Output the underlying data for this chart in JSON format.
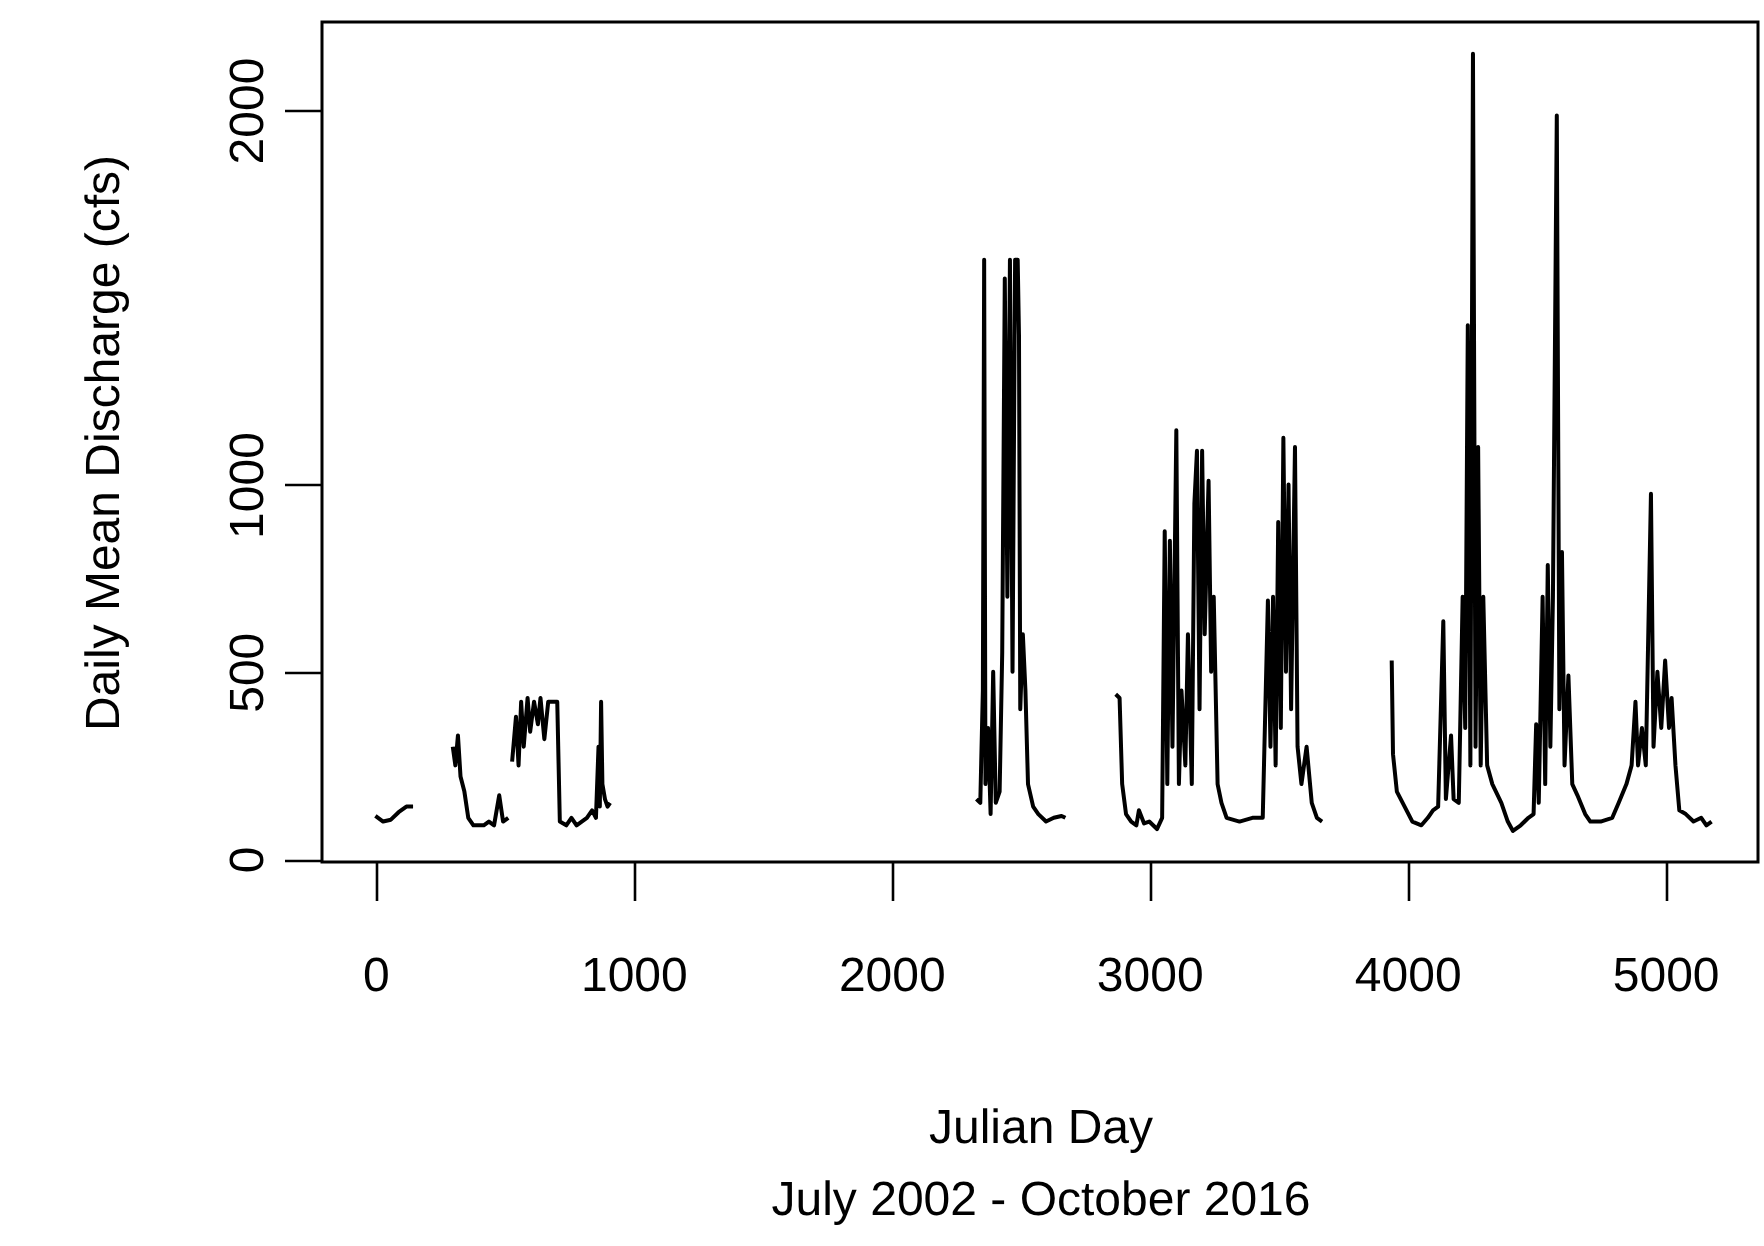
{
  "chart_data": {
    "type": "line",
    "xlabel": "Julian Day\nJuly 2002 - October 2016",
    "ylabel": "Daily Mean Discharge (cfs)",
    "xlim": [
      -207,
      5360
    ],
    "ylim": [
      -8,
      2235
    ],
    "xticks": [
      0,
      1000,
      2000,
      3000,
      4000,
      5000
    ],
    "yticks": [
      0,
      500,
      1000,
      2000
    ],
    "grid": false,
    "series": [
      {
        "color": "#000000",
        "x": [
          0,
          30,
          60,
          90,
          120,
          146,
          220,
          300,
          310,
          320,
          330,
          345,
          360,
          380,
          420,
          440,
          460,
          480,
          495,
          515,
          522,
          530,
          545,
          555,
          565,
          575,
          590,
          600,
          615,
          630,
          640,
          655,
          670,
          685,
          705,
          715,
          740,
          760,
          780,
          800,
          820,
          840,
          855,
          865,
          870,
          875,
          880,
          890,
          900,
          910,
          1500,
          2330,
          2345,
          2355,
          2360,
          2365,
          2375,
          2385,
          2395,
          2405,
          2420,
          2430,
          2440,
          2450,
          2460,
          2470,
          2480,
          2490,
          2495,
          2500,
          2510,
          2520,
          2530,
          2550,
          2570,
          2600,
          2630,
          2660,
          2675,
          2770,
          2870,
          2885,
          2895,
          2910,
          2930,
          2950,
          2960,
          2980,
          3000,
          3030,
          3050,
          3060,
          3070,
          3080,
          3090,
          3105,
          3115,
          3125,
          3140,
          3150,
          3165,
          3175,
          3185,
          3195,
          3205,
          3215,
          3230,
          3240,
          3250,
          3265,
          3280,
          3300,
          3350,
          3400,
          3440,
          3460,
          3470,
          3480,
          3490,
          3500,
          3510,
          3520,
          3530,
          3540,
          3550,
          3565,
          3575,
          3590,
          3610,
          3630,
          3650,
          3670,
          3800,
          3940,
          3945,
          3960,
          3990,
          4020,
          4055,
          4080,
          4100,
          4120,
          4140,
          4150,
          4170,
          4180,
          4200,
          4215,
          4225,
          4235,
          4245,
          4255,
          4265,
          4275,
          4285,
          4295,
          4310,
          4330,
          4365,
          4390,
          4410,
          4440,
          4470,
          4490,
          4500,
          4510,
          4525,
          4535,
          4545,
          4555,
          4565,
          4580,
          4590,
          4600,
          4610,
          4625,
          4640,
          4660,
          4690,
          4710,
          4750,
          4795,
          4820,
          4850,
          4870,
          4885,
          4895,
          4910,
          4925,
          4945,
          4955,
          4970,
          4985,
          5000,
          5015,
          5025,
          5040,
          5055,
          5080,
          5110,
          5140,
          5160,
          5180
        ],
        "values": [
          115,
          100,
          105,
          125,
          140,
          140,
          null,
          300,
          250,
          330,
          220,
          180,
          110,
          90,
          90,
          100,
          90,
          170,
          100,
          110,
          null,
          260,
          380,
          250,
          420,
          300,
          430,
          340,
          420,
          360,
          430,
          320,
          420,
          420,
          420,
          100,
          90,
          110,
          90,
          100,
          110,
          130,
          110,
          300,
          140,
          420,
          200,
          160,
          140,
          150,
          null,
          160,
          150,
          450,
          1600,
          200,
          350,
          120,
          500,
          150,
          180,
          550,
          1550,
          700,
          1600,
          500,
          1600,
          1600,
          1400,
          400,
          600,
          450,
          200,
          140,
          120,
          100,
          110,
          115,
          110,
          null,
          440,
          430,
          200,
          120,
          100,
          90,
          130,
          95,
          100,
          80,
          110,
          875,
          200,
          850,
          300,
          1145,
          200,
          450,
          250,
          600,
          200,
          950,
          1090,
          400,
          1090,
          600,
          1010,
          500,
          700,
          200,
          150,
          110,
          100,
          110,
          110,
          690,
          300,
          700,
          250,
          900,
          350,
          1125,
          500,
          1000,
          400,
          1100,
          300,
          200,
          300,
          150,
          110,
          100,
          null,
          530,
          280,
          180,
          140,
          100,
          90,
          110,
          130,
          140,
          635,
          160,
          330,
          160,
          150,
          700,
          350,
          1425,
          250,
          2150,
          300,
          1100,
          250,
          700,
          250,
          200,
          150,
          100,
          75,
          90,
          110,
          120,
          360,
          150,
          700,
          200,
          785,
          300,
          700,
          1985,
          400,
          820,
          250,
          490,
          200,
          170,
          120,
          100,
          100,
          110,
          150,
          200,
          250,
          420,
          250,
          350,
          250,
          975,
          300,
          500,
          350,
          530,
          350,
          430,
          250,
          130,
          120,
          100,
          110,
          90,
          100
        ]
      }
    ]
  }
}
